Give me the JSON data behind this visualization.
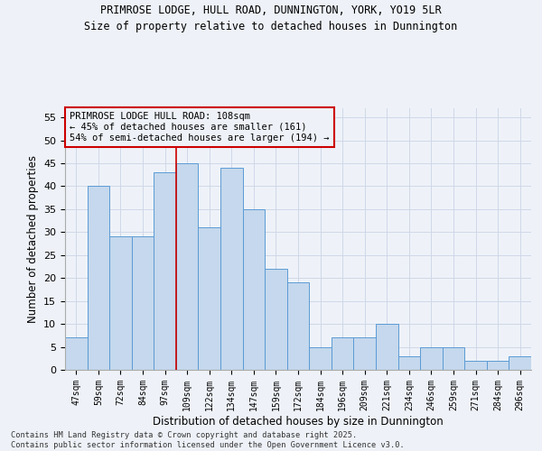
{
  "title1": "PRIMROSE LODGE, HULL ROAD, DUNNINGTON, YORK, YO19 5LR",
  "title2": "Size of property relative to detached houses in Dunnington",
  "xlabel": "Distribution of detached houses by size in Dunnington",
  "ylabel": "Number of detached properties",
  "categories": [
    "47sqm",
    "59sqm",
    "72sqm",
    "84sqm",
    "97sqm",
    "109sqm",
    "122sqm",
    "134sqm",
    "147sqm",
    "159sqm",
    "172sqm",
    "184sqm",
    "196sqm",
    "209sqm",
    "221sqm",
    "234sqm",
    "246sqm",
    "259sqm",
    "271sqm",
    "284sqm",
    "296sqm"
  ],
  "values": [
    7,
    40,
    29,
    29,
    43,
    45,
    31,
    44,
    35,
    22,
    19,
    5,
    7,
    7,
    10,
    3,
    5,
    5,
    2,
    2,
    3
  ],
  "bar_color": "#c5d8ed",
  "bar_edge_color": "#5b9bd5",
  "grid_color": "#d0d8e8",
  "background_color": "#eef2f8",
  "vline_x_index": 5,
  "vline_color": "#cc0000",
  "annotation_text": "PRIMROSE LODGE HULL ROAD: 108sqm\n← 45% of detached houses are smaller (161)\n54% of semi-detached houses are larger (194) →",
  "annotation_box_color": "#cc0000",
  "footnote": "Contains HM Land Registry data © Crown copyright and database right 2025.\nContains public sector information licensed under the Open Government Licence v3.0.",
  "ylim": [
    0,
    57
  ],
  "yticks": [
    0,
    5,
    10,
    15,
    20,
    25,
    30,
    35,
    40,
    45,
    50,
    55
  ]
}
